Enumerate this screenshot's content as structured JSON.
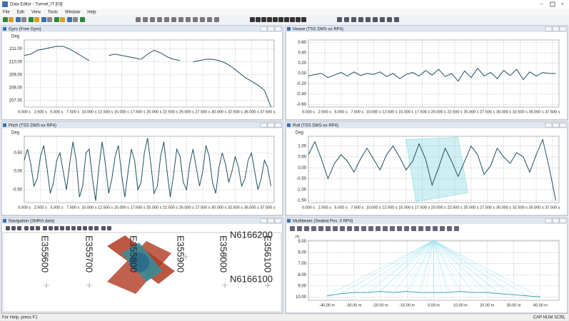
{
  "window": {
    "title": "Data Editor - Tunnel_IT [03]"
  },
  "menu": [
    "File",
    "Edit",
    "View",
    "Tools",
    "Window",
    "Help"
  ],
  "status": {
    "left": "For Help, press F1",
    "right": "CAP NUM SCRL"
  },
  "navigation": {
    "title": "Navigation (SMRA data)",
    "eastings": [
      "E355600",
      "E355700",
      "E355800",
      "E355900",
      "E356000",
      "E356100"
    ],
    "northings": [
      "N6166200",
      "N6166100"
    ]
  },
  "chart_data": [
    {
      "type": "line",
      "title": "Gyro (Free Gyro)",
      "ylabel": "Deg",
      "color": "#1f5060",
      "grid": true,
      "x": [
        0,
        1,
        2,
        3,
        4,
        5,
        6,
        7,
        8,
        9,
        10,
        11,
        12,
        13,
        14,
        15,
        16,
        17,
        18,
        19,
        20,
        21,
        22,
        23,
        24,
        25,
        26,
        27,
        28,
        29,
        30,
        31,
        32,
        33,
        34,
        35,
        36,
        37,
        38
      ],
      "values": [
        210.5,
        210.6,
        210.9,
        211.0,
        211.1,
        211.2,
        211.2,
        211.0,
        210.7,
        210.4,
        210.1,
        null,
        null,
        210.5,
        210.6,
        210.5,
        210.4,
        210.3,
        210.2,
        210.6,
        210.9,
        210.7,
        210.4,
        210.2,
        210.1,
        null,
        210.0,
        210.1,
        210.2,
        210.2,
        210.1,
        209.9,
        209.6,
        209.2,
        208.8,
        208.5,
        208.2,
        207.8,
        206.5
      ],
      "xlim": [
        0,
        38.5
      ],
      "ylim": [
        206.5,
        211.7
      ],
      "yticks": [
        {
          "value": 207,
          "label": "207.00"
        },
        {
          "value": 208,
          "label": "208.00"
        },
        {
          "value": 209,
          "label": "209.00"
        },
        {
          "value": 210,
          "label": "210.00"
        },
        {
          "value": 211,
          "label": "211.00"
        }
      ],
      "xticks": [
        {
          "value": 0,
          "label": "0.000 s"
        },
        {
          "value": 2.5,
          "label": "2.500 s"
        },
        {
          "value": 5,
          "label": "5.000 s"
        },
        {
          "value": 7.5,
          "label": "7.500 s"
        },
        {
          "value": 10,
          "label": "10.000 s"
        },
        {
          "value": 12.5,
          "label": "12.500 s"
        },
        {
          "value": 15,
          "label": "15.000 s"
        },
        {
          "value": 17.5,
          "label": "17.500 s"
        },
        {
          "value": 20,
          "label": "20.000 s"
        },
        {
          "value": 22.5,
          "label": "22.500 s"
        },
        {
          "value": 25,
          "label": "25.000 s"
        },
        {
          "value": 27.5,
          "label": "27.500 s"
        },
        {
          "value": 30,
          "label": "30.000 s"
        },
        {
          "value": 32.5,
          "label": "32.500 s"
        },
        {
          "value": 35,
          "label": "35.000 s"
        },
        {
          "value": 37.5,
          "label": "37.500 s"
        }
      ]
    },
    {
      "type": "line",
      "title": "Heave (TSS DMS-xx RP4)",
      "color": "#1f5060",
      "grid": true,
      "x": [
        0,
        1,
        2,
        3,
        4,
        5,
        6,
        7,
        8,
        9,
        10,
        11,
        12,
        13,
        14,
        15,
        16,
        17,
        18,
        19,
        20,
        21,
        22,
        23,
        24,
        25,
        26,
        27,
        28,
        29,
        30,
        31,
        32,
        33,
        34,
        35,
        36,
        37,
        38
      ],
      "values": [
        -0.05,
        -0.02,
        0.0,
        -0.08,
        -0.03,
        0.02,
        -0.05,
        0.03,
        -0.04,
        0.0,
        -0.02,
        0.03,
        -0.06,
        0.0,
        -0.1,
        -0.02,
        0.02,
        -0.05,
        0.06,
        -0.03,
        0.08,
        -0.06,
        0.0,
        -0.15,
        0.05,
        -0.08,
        0.1,
        -0.05,
        0.02,
        -0.1,
        0.06,
        -0.04,
        0.08,
        -0.12,
        0.03,
        -0.05,
        0.02,
        0.0,
        0.0
      ],
      "xlim": [
        0,
        38.5
      ],
      "ylim": [
        -0.65,
        0.65
      ],
      "yticks": [
        {
          "value": 0.6,
          "label": "0.60"
        },
        {
          "value": 0.4,
          "label": "0.40"
        },
        {
          "value": 0.2,
          "label": "0.20"
        },
        {
          "value": 0,
          "label": "0.00"
        },
        {
          "value": -0.2,
          "label": "-0.20"
        },
        {
          "value": -0.4,
          "label": "-0.40"
        },
        {
          "value": -0.6,
          "label": "-0.60"
        }
      ],
      "xticks": [
        {
          "value": 0,
          "label": "0.000 s"
        },
        {
          "value": 2.5,
          "label": "2.500 s"
        },
        {
          "value": 5,
          "label": "5.000 s"
        },
        {
          "value": 7.5,
          "label": "7.500 s"
        },
        {
          "value": 10,
          "label": "10.000 s"
        },
        {
          "value": 12.5,
          "label": "12.500 s"
        },
        {
          "value": 15,
          "label": "15.000 s"
        },
        {
          "value": 17.5,
          "label": "17.500 s"
        },
        {
          "value": 20,
          "label": "20.000 s"
        },
        {
          "value": 22.5,
          "label": "22.500 s"
        },
        {
          "value": 25,
          "label": "25.000 s"
        },
        {
          "value": 27.5,
          "label": "27.500 s"
        },
        {
          "value": 30,
          "label": "30.000 s"
        },
        {
          "value": 32.5,
          "label": "32.500 s"
        },
        {
          "value": 35,
          "label": "35.000 s"
        },
        {
          "value": 37.5,
          "label": "37.500 s"
        }
      ]
    },
    {
      "type": "line",
      "title": "Pitch (TSS DMS-xx RP4)",
      "ylabel": "Deg",
      "color": "#1f5060",
      "grid": true,
      "x": [
        0,
        0.5,
        1,
        1.5,
        2,
        2.5,
        3,
        3.5,
        4,
        4.5,
        5,
        5.5,
        6,
        6.5,
        7,
        7.5,
        8,
        8.5,
        9,
        9.5,
        10,
        10.5,
        11,
        11.5,
        12,
        12.5,
        13,
        13.5,
        14,
        14.5,
        15,
        15.5,
        16,
        16.5,
        17,
        17.5,
        18,
        18.5,
        19,
        19.5,
        20,
        20.5,
        21,
        21.5,
        22,
        22.5,
        23,
        23.5,
        24,
        24.5,
        25,
        25.5,
        26,
        26.5,
        27,
        27.5,
        28,
        28.5,
        29,
        29.5,
        30,
        30.5,
        31,
        31.5,
        32,
        32.5,
        33,
        33.5,
        34,
        34.5,
        35,
        35.5,
        36,
        36.5,
        37,
        37.5,
        38
      ],
      "values": [
        0.3,
        0.6,
        0.2,
        -0.4,
        -0.2,
        0.4,
        0.7,
        0.1,
        -0.6,
        -0.3,
        0.3,
        0.5,
        0.0,
        -0.5,
        0.2,
        0.8,
        0.3,
        -0.7,
        -0.4,
        0.5,
        0.6,
        -0.2,
        -0.8,
        0.1,
        0.8,
        0.2,
        -0.6,
        -0.2,
        0.4,
        0.7,
        -0.1,
        -0.7,
        0.0,
        0.6,
        0.3,
        -0.5,
        -0.3,
        0.5,
        0.9,
        0.2,
        -0.6,
        -0.4,
        0.4,
        0.8,
        0.0,
        -0.7,
        -0.1,
        0.6,
        0.4,
        -0.3,
        -0.5,
        0.2,
        0.6,
        0.1,
        -0.4,
        0.0,
        0.7,
        0.4,
        -0.3,
        -0.6,
        0.1,
        0.5,
        0.2,
        -0.3,
        0.0,
        0.4,
        0.1,
        -0.4,
        -0.2,
        0.3,
        0.5,
        0.0,
        -0.5,
        -0.2,
        0.3,
        0.1,
        -0.4
      ],
      "xlim": [
        0,
        38.5
      ],
      "ylim": [
        -0.85,
        0.95
      ],
      "yticks": [
        {
          "value": 0.5,
          "label": "0.50"
        },
        {
          "value": 0,
          "label": "0.00"
        },
        {
          "value": -0.5,
          "label": "-0.50"
        }
      ],
      "xticks": [
        {
          "value": 0,
          "label": "0.000 s"
        },
        {
          "value": 2.5,
          "label": "2.500 s"
        },
        {
          "value": 5,
          "label": "5.000 s"
        },
        {
          "value": 7.5,
          "label": "7.500 s"
        },
        {
          "value": 10,
          "label": "10.000 s"
        },
        {
          "value": 12.5,
          "label": "12.500 s"
        },
        {
          "value": 15,
          "label": "15.000 s"
        },
        {
          "value": 17.5,
          "label": "17.500 s"
        },
        {
          "value": 20,
          "label": "20.000 s"
        },
        {
          "value": 22.5,
          "label": "22.500 s"
        },
        {
          "value": 25,
          "label": "25.000 s"
        },
        {
          "value": 27.5,
          "label": "27.500 s"
        },
        {
          "value": 30,
          "label": "30.000 s"
        },
        {
          "value": 32.5,
          "label": "32.500 s"
        },
        {
          "value": 35,
          "label": "35.000 s"
        },
        {
          "value": 37.5,
          "label": "37.500 s"
        }
      ]
    },
    {
      "type": "line",
      "title": "Roll (TSS DMS-xx RP4)",
      "ylabel": "Deg",
      "color": "#1f5060",
      "grid": true,
      "x": [
        0,
        1,
        2,
        3,
        4,
        5,
        6,
        7,
        8,
        9,
        10,
        11,
        12,
        13,
        14,
        15,
        16,
        17,
        18,
        19,
        20,
        21,
        22,
        23,
        24,
        25,
        26,
        27,
        28,
        29,
        30,
        31,
        32,
        33,
        34,
        35,
        36,
        37,
        38
      ],
      "values": [
        0.6,
        1.2,
        0.4,
        -0.5,
        0.2,
        0.6,
        0.3,
        -0.2,
        0.4,
        0.9,
        0.4,
        -0.1,
        0.6,
        1.0,
        0.5,
        -0.1,
        0.3,
        1.1,
        0.4,
        -0.8,
        0.0,
        0.9,
        0.3,
        -0.4,
        0.3,
        1.0,
        0.6,
        -0.3,
        0.1,
        0.9,
        0.5,
        0.2,
        0.7,
        0.5,
        -0.2,
        0.6,
        1.3,
        0.0,
        -1.5
      ],
      "xlim": [
        0,
        38.5
      ],
      "ylim": [
        -1.6,
        1.45
      ],
      "yticks": [
        {
          "value": 1,
          "label": "1.00"
        },
        {
          "value": 0.5,
          "label": "0.50"
        },
        {
          "value": 0,
          "label": "0.00"
        },
        {
          "value": -0.5,
          "label": "-0.50"
        },
        {
          "value": -1,
          "label": "-1.00"
        },
        {
          "value": -1.5,
          "label": "-1.50"
        }
      ],
      "xticks": [
        {
          "value": 0,
          "label": "0.000 s"
        },
        {
          "value": 2.5,
          "label": "2.500 s"
        },
        {
          "value": 5,
          "label": "5.000 s"
        },
        {
          "value": 7.5,
          "label": "7.500 s"
        },
        {
          "value": 10,
          "label": "10.000 s"
        },
        {
          "value": 12.5,
          "label": "12.500 s"
        },
        {
          "value": 15,
          "label": "15.000 s"
        },
        {
          "value": 17.5,
          "label": "17.500 s"
        },
        {
          "value": 20,
          "label": "20.000 s"
        },
        {
          "value": 22.5,
          "label": "22.500 s"
        },
        {
          "value": 25,
          "label": "25.000 s"
        },
        {
          "value": 27.5,
          "label": "27.500 s"
        },
        {
          "value": 30,
          "label": "30.000 s"
        },
        {
          "value": 32.5,
          "label": "32.500 s"
        },
        {
          "value": 35,
          "label": "35.000 s"
        },
        {
          "value": 37.5,
          "label": "37.500 s"
        }
      ]
    },
    {
      "type": "line",
      "title": "Multibeam (Seabat Pos. 0 RP4)",
      "ylabel": "m",
      "color": "#3aa8bc",
      "grid": true,
      "y_inverted": true,
      "x": [
        -40,
        -35,
        -30,
        -25,
        -20,
        -15,
        -10,
        -5,
        0,
        5,
        10,
        15,
        20,
        25,
        30,
        35,
        40
      ],
      "values": [
        9.9,
        9.7,
        9.6,
        9.6,
        9.5,
        9.6,
        9.5,
        9.6,
        9.6,
        9.6,
        9.5,
        9.6,
        9.6,
        9.7,
        9.8,
        9.9,
        10.0
      ],
      "xlim": [
        -47,
        47
      ],
      "ylim": [
        4.9,
        10.3
      ],
      "yticks": [
        {
          "value": 5,
          "label": "5.00"
        },
        {
          "value": 6,
          "label": "6.00"
        },
        {
          "value": 7,
          "label": "7.00"
        },
        {
          "value": 8,
          "label": "8.00"
        },
        {
          "value": 9,
          "label": "9.00"
        },
        {
          "value": 10,
          "label": "10.00"
        }
      ],
      "xticks": [
        {
          "value": -40,
          "label": "-40.00 m"
        },
        {
          "value": -30,
          "label": "-30.00 m"
        },
        {
          "value": -20,
          "label": "-20.00 m"
        },
        {
          "value": -10,
          "label": "-10.00 m"
        },
        {
          "value": 0,
          "label": "0.00 m"
        },
        {
          "value": 10,
          "label": "10.00 m"
        },
        {
          "value": 20,
          "label": "20.00 m"
        },
        {
          "value": 30,
          "label": "30.00 m"
        },
        {
          "value": 40,
          "label": "40.00 m"
        }
      ]
    }
  ]
}
